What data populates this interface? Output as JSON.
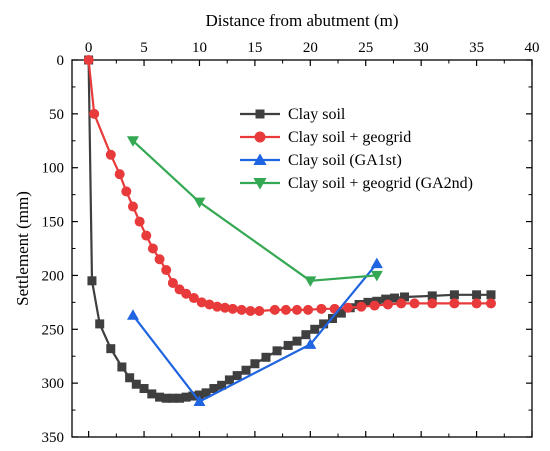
{
  "chart_data": {
    "type": "line",
    "xlabel": "Distance from abutment (m)",
    "ylabel": "Settlement (mm)",
    "x_axis_position": "top",
    "y_axis_inverted": true,
    "xlim": [
      -1.5,
      40
    ],
    "ylim": [
      0,
      350
    ],
    "xticks": [
      0,
      5,
      10,
      15,
      20,
      25,
      30,
      35,
      40
    ],
    "yticks": [
      0,
      50,
      100,
      150,
      200,
      250,
      300,
      350
    ],
    "xtick_labels": [
      "0",
      "5",
      "10",
      "15",
      "20",
      "25",
      "30",
      "35",
      "40"
    ],
    "ytick_labels": [
      "0",
      "50",
      "100",
      "150",
      "200",
      "250",
      "300",
      "350"
    ],
    "grid": false,
    "legend_position": "upper-right",
    "series": [
      {
        "name": "Clay soil",
        "color": "#3f3f3f",
        "marker": "square",
        "x": [
          0,
          0.3,
          1.0,
          2.0,
          3.0,
          3.7,
          4.3,
          5.0,
          5.7,
          6.4,
          7.0,
          7.6,
          8.2,
          8.8,
          9.4,
          10.0,
          10.6,
          11.3,
          12.0,
          12.7,
          13.4,
          14.2,
          15.0,
          16.0,
          17.0,
          18.0,
          18.8,
          19.6,
          20.4,
          21.2,
          22.0,
          22.8,
          23.6,
          24.4,
          25.2,
          26.0,
          26.8,
          27.6,
          28.5,
          31.0,
          33.0,
          35.0,
          36.3
        ],
        "y": [
          0,
          205,
          245,
          268,
          285,
          295,
          301,
          305,
          310,
          313,
          314,
          314,
          314,
          313,
          312,
          311,
          309,
          305,
          302,
          297,
          293,
          288,
          282,
          276,
          270,
          265,
          261,
          255,
          250,
          245,
          240,
          235,
          230,
          227,
          225,
          224,
          222,
          221,
          220,
          219,
          218,
          218,
          218
        ]
      },
      {
        "name": "Clay soil + geogrid",
        "color": "#e83a3a",
        "marker": "circle",
        "x": [
          0,
          0.5,
          2.0,
          2.8,
          3.4,
          4.0,
          4.6,
          5.2,
          5.8,
          6.4,
          7.0,
          7.6,
          8.2,
          8.8,
          9.5,
          10.2,
          10.9,
          11.6,
          12.3,
          13.0,
          13.8,
          14.6,
          15.4,
          16.8,
          17.8,
          18.8,
          19.8,
          21.0,
          22.2,
          23.4,
          24.6,
          25.8,
          27.0,
          28.2,
          29.4,
          31.0,
          33.0,
          35.0,
          36.3
        ],
        "y": [
          0,
          50,
          88,
          106,
          122,
          136,
          150,
          163,
          175,
          185,
          195,
          207,
          213,
          217,
          221,
          225,
          227,
          229,
          230,
          231,
          232,
          233,
          233,
          232,
          232,
          232,
          232,
          231,
          231,
          230,
          229,
          228,
          227,
          226,
          226,
          226,
          226,
          226,
          226
        ]
      },
      {
        "name": "Clay soil (GA1st)",
        "color": "#1f64e0",
        "marker": "triangle-up",
        "x": [
          4,
          10,
          20,
          26
        ],
        "y": [
          237,
          317,
          264,
          189
        ]
      },
      {
        "name": "Clay soil + geogrid (GA2nd)",
        "color": "#34a853",
        "marker": "triangle-down",
        "x": [
          4,
          10,
          20,
          26
        ],
        "y": [
          75,
          132,
          205,
          200
        ]
      }
    ]
  }
}
